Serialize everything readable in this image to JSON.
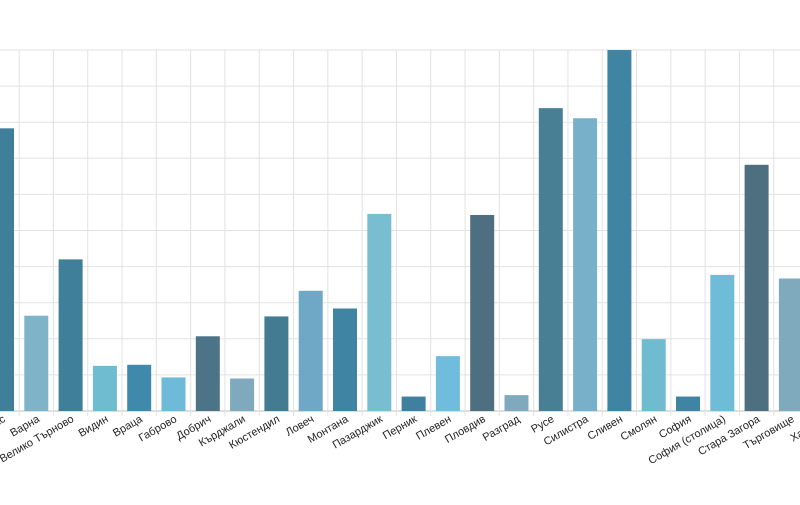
{
  "chart_data": {
    "type": "bar",
    "title": "",
    "xlabel": "",
    "ylabel": "",
    "grid": true,
    "legend": "none",
    "ylim": [
      0,
      100
    ],
    "categories": [
      "Бургас",
      "Варна",
      "Велико Търново",
      "Видин",
      "Враца",
      "Габрово",
      "Добрич",
      "Кърджали",
      "Кюстендил",
      "Ловеч",
      "Монтана",
      "Пазарджик",
      "Перник",
      "Плевен",
      "Пловдив",
      "Разград",
      "Русе",
      "Силистра",
      "Сливен",
      "Смолян",
      "София",
      "София (столица)",
      "Стара Загора",
      "Търговище",
      "Хасково"
    ],
    "values": [
      78.3,
      26.4,
      42.0,
      12.5,
      12.8,
      9.3,
      20.7,
      9.0,
      26.2,
      33.3,
      28.4,
      54.6,
      4.0,
      15.2,
      54.3,
      4.4,
      83.9,
      81.1,
      100.0,
      19.9,
      4.0,
      37.7,
      68.2,
      36.7,
      30.0
    ],
    "colors": [
      "#3f7f99",
      "#7fb3c8",
      "#3f7f99",
      "#6fbcd0",
      "#3f8aaa",
      "#6fbad8",
      "#4d7388",
      "#7fa9bc",
      "#427b92",
      "#6ea8c6",
      "#3f85a3",
      "#79bdd0",
      "#3f7f9f",
      "#6fbcdc",
      "#4d6f80",
      "#7fa9bc",
      "#497f95",
      "#79b0c9",
      "#3f85a3",
      "#6fbcd0",
      "#3f85a3",
      "#6fbcd9",
      "#4d6f80",
      "#7fa9bc",
      "#497f95"
    ]
  }
}
